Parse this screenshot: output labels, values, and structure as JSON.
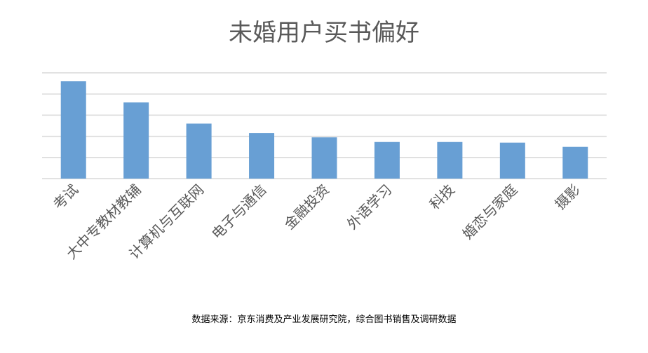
{
  "chart_data": {
    "type": "bar",
    "title": "未婚用户买书偏好",
    "categories": [
      "考试",
      "大中专教材教辅",
      "计算机与互联网",
      "电子与通信",
      "金融投资",
      "外语学习",
      "科技",
      "婚恋与家庭",
      "摄影"
    ],
    "values": [
      4.6,
      3.6,
      2.6,
      2.15,
      1.95,
      1.73,
      1.73,
      1.7,
      1.5
    ],
    "ylim": [
      0,
      5
    ],
    "grid": true,
    "y_tick_labels_shown": false,
    "xlabel": "",
    "ylabel": "",
    "source": "数据来源：京东消费及产业发展研究院，综合图书销售及调研数据",
    "colors": {
      "bar": "#689fd4",
      "grid": "#d9d9d9",
      "title": "#595959",
      "label": "#595959",
      "source": "#000000"
    }
  }
}
